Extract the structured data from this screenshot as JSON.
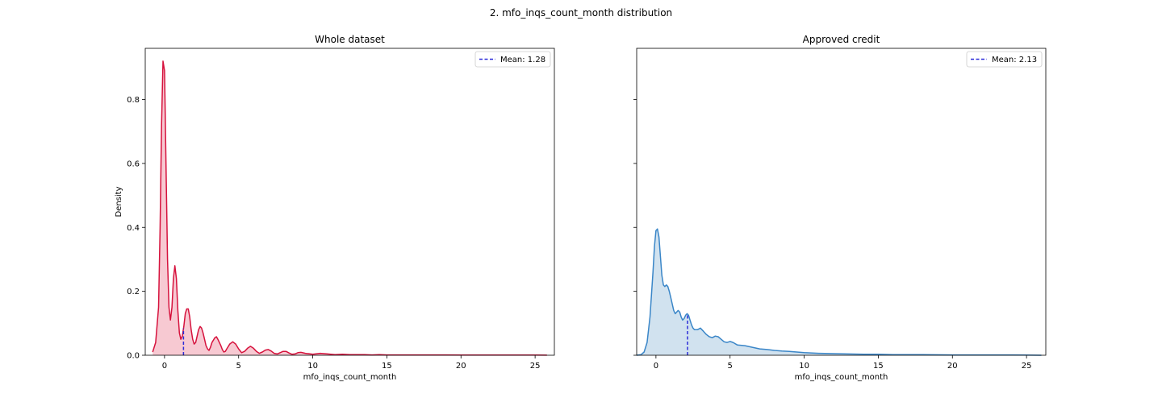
{
  "suptitle": "2. mfo_inqs_count_month distribution",
  "chart_data": [
    {
      "type": "area",
      "title": "Whole dataset",
      "xlabel": "mfo_inqs_count_month",
      "ylabel": "Density",
      "xlim": [
        -1.3,
        26.3
      ],
      "ylim": [
        0,
        0.96
      ],
      "xticks": [
        0,
        5,
        10,
        15,
        20,
        25
      ],
      "yticks": [
        0.0,
        0.2,
        0.4,
        0.6,
        0.8
      ],
      "ytick_labels": [
        "0.0",
        "0.2",
        "0.4",
        "0.6",
        "0.8"
      ],
      "line_color": "#d6123d",
      "fill_color": "#f7c6d0",
      "mean": 1.28,
      "mean_label": "Mean: 1.28",
      "mean_color": "#2b2bd9",
      "legend_position": "top-right",
      "grid": false,
      "x": [
        -0.8,
        -0.6,
        -0.4,
        -0.3,
        -0.2,
        -0.1,
        0.0,
        0.1,
        0.2,
        0.3,
        0.4,
        0.5,
        0.6,
        0.7,
        0.8,
        0.9,
        1.0,
        1.1,
        1.2,
        1.3,
        1.4,
        1.5,
        1.6,
        1.7,
        1.8,
        1.9,
        2.0,
        2.1,
        2.2,
        2.3,
        2.4,
        2.5,
        2.6,
        2.7,
        2.8,
        2.9,
        3.0,
        3.1,
        3.2,
        3.4,
        3.5,
        3.6,
        3.8,
        3.9,
        4.0,
        4.1,
        4.2,
        4.4,
        4.6,
        4.8,
        5.0,
        5.2,
        5.4,
        5.6,
        5.8,
        6.0,
        6.2,
        6.4,
        6.6,
        6.8,
        7.0,
        7.2,
        7.4,
        7.6,
        7.8,
        8.0,
        8.2,
        8.4,
        8.6,
        8.8,
        9.0,
        9.2,
        9.5,
        10.0,
        10.5,
        11.0,
        11.5,
        12.0,
        12.5,
        13.0,
        13.5,
        14.0,
        14.5,
        15.0,
        16.0,
        17.0,
        18.0,
        19.0,
        20.0,
        21.0,
        22.0,
        23.0,
        24.0,
        25.0,
        25.8
      ],
      "y": [
        0.01,
        0.04,
        0.15,
        0.4,
        0.72,
        0.92,
        0.89,
        0.6,
        0.3,
        0.15,
        0.11,
        0.15,
        0.24,
        0.28,
        0.24,
        0.14,
        0.07,
        0.05,
        0.06,
        0.09,
        0.13,
        0.145,
        0.145,
        0.12,
        0.08,
        0.05,
        0.035,
        0.04,
        0.06,
        0.08,
        0.09,
        0.085,
        0.07,
        0.05,
        0.03,
        0.02,
        0.015,
        0.025,
        0.04,
        0.055,
        0.058,
        0.05,
        0.03,
        0.018,
        0.01,
        0.012,
        0.02,
        0.035,
        0.042,
        0.035,
        0.02,
        0.008,
        0.012,
        0.022,
        0.028,
        0.022,
        0.012,
        0.006,
        0.01,
        0.016,
        0.018,
        0.013,
        0.006,
        0.004,
        0.008,
        0.012,
        0.012,
        0.007,
        0.003,
        0.004,
        0.008,
        0.009,
        0.006,
        0.003,
        0.006,
        0.004,
        0.002,
        0.003,
        0.002,
        0.002,
        0.002,
        0.001,
        0.002,
        0.001,
        0.001,
        0.001,
        0.001,
        0.001,
        0.0005,
        0.0005,
        0.0005,
        0.0005,
        0.0005,
        0.0005,
        0.0003
      ]
    },
    {
      "type": "area",
      "title": "Approved credit",
      "xlabel": "mfo_inqs_count_month",
      "ylabel": "",
      "xlim": [
        -1.3,
        26.3
      ],
      "ylim": [
        0,
        0.96
      ],
      "xticks": [
        0,
        5,
        10,
        15,
        20,
        25
      ],
      "yticks": [
        0.0,
        0.2,
        0.4,
        0.6,
        0.8
      ],
      "ytick_labels": [],
      "line_color": "#3a86c8",
      "fill_color": "#cfe0ee",
      "mean": 2.13,
      "mean_label": "Mean: 2.13",
      "mean_color": "#2b2bd9",
      "legend_position": "top-right",
      "grid": false,
      "x": [
        -1.3,
        -1.0,
        -0.8,
        -0.6,
        -0.4,
        -0.2,
        -0.1,
        0.0,
        0.1,
        0.2,
        0.3,
        0.4,
        0.5,
        0.6,
        0.7,
        0.8,
        0.9,
        1.0,
        1.1,
        1.2,
        1.3,
        1.4,
        1.5,
        1.6,
        1.7,
        1.8,
        1.9,
        2.0,
        2.1,
        2.2,
        2.3,
        2.4,
        2.5,
        2.6,
        2.8,
        3.0,
        3.2,
        3.4,
        3.6,
        3.8,
        4.0,
        4.2,
        4.4,
        4.6,
        4.8,
        5.0,
        5.2,
        5.5,
        6.0,
        6.5,
        7.0,
        7.5,
        8.0,
        8.5,
        9.0,
        9.5,
        10.0,
        11.0,
        12.0,
        13.0,
        14.0,
        15.0,
        16.0,
        17.0,
        18.0,
        20.0,
        22.0,
        24.0,
        26.0
      ],
      "y": [
        0.0,
        0.002,
        0.01,
        0.04,
        0.12,
        0.26,
        0.34,
        0.39,
        0.395,
        0.37,
        0.31,
        0.25,
        0.22,
        0.215,
        0.22,
        0.215,
        0.2,
        0.18,
        0.16,
        0.14,
        0.13,
        0.135,
        0.14,
        0.135,
        0.12,
        0.11,
        0.115,
        0.125,
        0.13,
        0.125,
        0.11,
        0.095,
        0.085,
        0.08,
        0.08,
        0.085,
        0.075,
        0.065,
        0.058,
        0.055,
        0.06,
        0.058,
        0.05,
        0.042,
        0.04,
        0.043,
        0.04,
        0.032,
        0.03,
        0.025,
        0.02,
        0.018,
        0.015,
        0.013,
        0.012,
        0.01,
        0.008,
        0.006,
        0.005,
        0.004,
        0.003,
        0.003,
        0.002,
        0.002,
        0.002,
        0.001,
        0.001,
        0.001,
        0.0
      ]
    }
  ]
}
